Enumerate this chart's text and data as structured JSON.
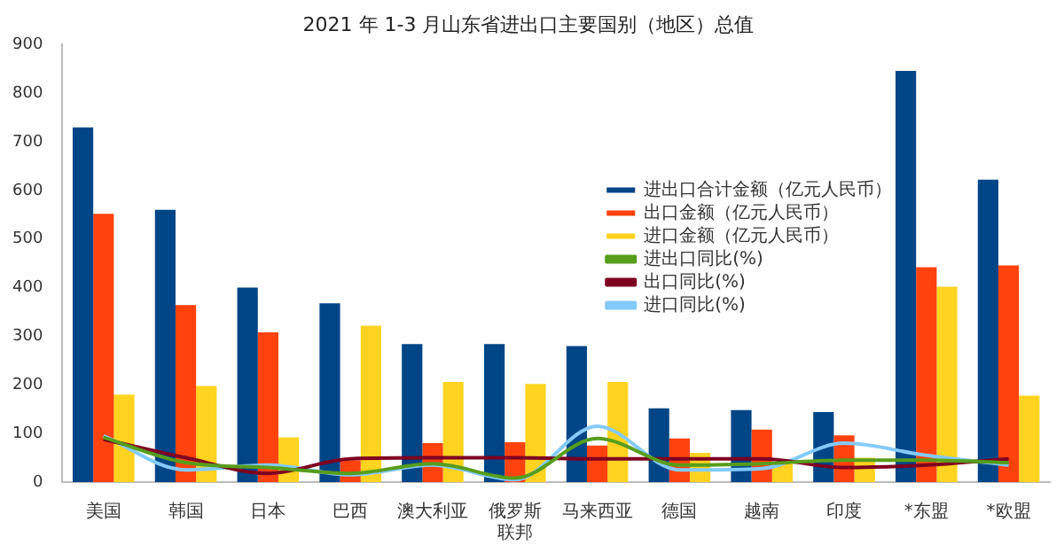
{
  "chart_data": {
    "type": "bar",
    "title": "2021 年 1-3 月山东省进出口主要国别（地区）总值",
    "categories": [
      "美国",
      "韩国",
      "日本",
      "巴西",
      "澳大利亚",
      "俄罗斯联邦",
      "马来西亚",
      "德国",
      "越南",
      "印度",
      "*东盟",
      "*欧盟"
    ],
    "series": [
      {
        "name": "进出口合计金额（亿元人民币）",
        "color": "#004586",
        "values": [
          730,
          560,
          400,
          368,
          284,
          284,
          280,
          152,
          148,
          144,
          846,
          622
        ]
      },
      {
        "name": "出口金额（亿元人民币）",
        "color": "#ff420e",
        "values": [
          552,
          364,
          308,
          45,
          80,
          82,
          75,
          90,
          108,
          96,
          442,
          446
        ]
      },
      {
        "name": "进口金额（亿元人民币）",
        "color": "#ffd320",
        "values": [
          180,
          198,
          92,
          322,
          206,
          202,
          206,
          60,
          40,
          50,
          402,
          178
        ]
      },
      {
        "name": "进出口同比(%)",
        "type": "line",
        "color": "#579d1c",
        "values": [
          92,
          40,
          30,
          18,
          38,
          8,
          90,
          35,
          38,
          45,
          45,
          40
        ]
      },
      {
        "name": "出口同比(%)",
        "type": "line",
        "color": "#7e0021",
        "values": [
          88,
          50,
          18,
          48,
          50,
          50,
          48,
          48,
          48,
          30,
          35,
          48
        ]
      },
      {
        "name": "进口同比(%)",
        "type": "line",
        "color": "#83caff",
        "values": [
          95,
          25,
          35,
          15,
          35,
          5,
          115,
          25,
          28,
          80,
          55,
          35
        ]
      }
    ],
    "ylim": [
      0,
      900
    ],
    "yticks": [
      0,
      100,
      200,
      300,
      400,
      500,
      600,
      700,
      800,
      900
    ],
    "grid": false,
    "legend": "right",
    "marker": "none"
  }
}
